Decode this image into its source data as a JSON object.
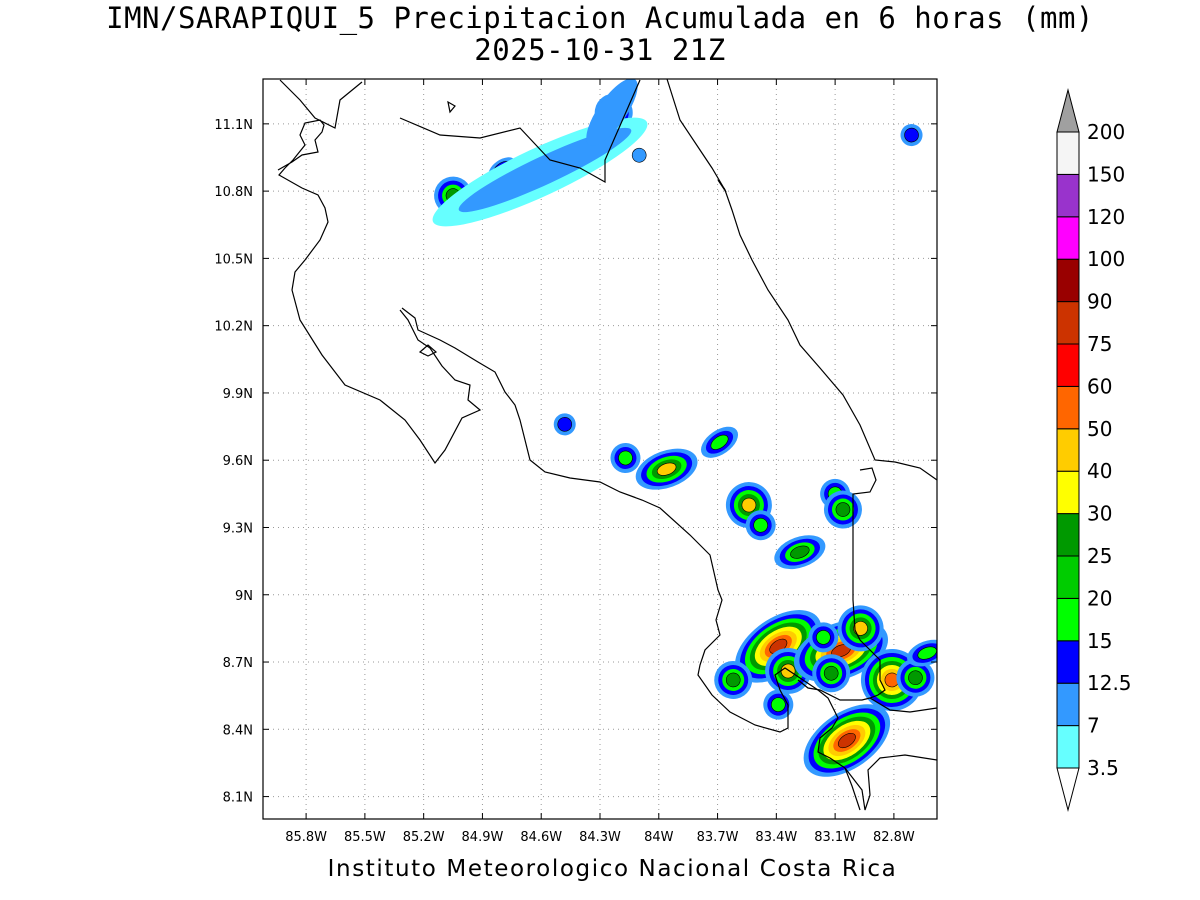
{
  "title_line1": "IMN/SARAPIQUI_5 Precipitacion Acumulada en 6 horas (mm)",
  "title_line2": "2025-10-31 21Z",
  "footer": "Instituto Meteorologico Nacional Costa Rica",
  "map": {
    "lon_range": [
      -86.02,
      -82.58
    ],
    "lat_range": [
      8.0,
      11.3
    ],
    "lon_ticks": [
      "85.8W",
      "85.5W",
      "85.2W",
      "84.9W",
      "84.6W",
      "84.3W",
      "84W",
      "83.7W",
      "83.4W",
      "83.1W",
      "82.8W"
    ],
    "lon_tick_values": [
      -85.8,
      -85.5,
      -85.2,
      -84.9,
      -84.6,
      -84.3,
      -84.0,
      -83.7,
      -83.4,
      -83.1,
      -82.8
    ],
    "lat_ticks": [
      "11.1N",
      "10.8N",
      "10.5N",
      "10.2N",
      "9.9N",
      "9.6N",
      "9.3N",
      "9N",
      "8.7N",
      "8.4N",
      "8.1N"
    ],
    "lat_tick_values": [
      11.1,
      10.8,
      10.5,
      10.2,
      9.9,
      9.6,
      9.3,
      9.0,
      8.7,
      8.4,
      8.1
    ],
    "grid": "dotted"
  },
  "colorbar": {
    "labels": [
      "3.5",
      "7",
      "12.5",
      "15",
      "20",
      "25",
      "30",
      "40",
      "50",
      "60",
      "75",
      "90",
      "100",
      "120",
      "150",
      "200"
    ],
    "colors": [
      "#66ffff",
      "#3399ff",
      "#0000ff",
      "#00ff00",
      "#00cc00",
      "#009900",
      "#ffff00",
      "#ffcc00",
      "#ff6600",
      "#ff0000",
      "#cc3300",
      "#990000",
      "#ff00ff",
      "#9933cc",
      "#f5f5f5"
    ],
    "under_color": "#ffffff",
    "over_color": "#a0a0a0"
  },
  "precip_cells": [
    {
      "lon": -84.55,
      "lat": 10.95,
      "levels": [
        1,
        2,
        3,
        5
      ]
    },
    {
      "lon": -84.23,
      "lat": 11.15,
      "levels": [
        1,
        2,
        3,
        5
      ]
    },
    {
      "lon": -85.05,
      "lat": 10.78,
      "levels": [
        1,
        2,
        3,
        5
      ]
    },
    {
      "lon": -84.8,
      "lat": 10.9,
      "levels": [
        1,
        2
      ]
    },
    {
      "lon": -84.1,
      "lat": 10.96,
      "levels": [
        1
      ]
    },
    {
      "lon": -82.71,
      "lat": 11.05,
      "levels": [
        1,
        2
      ]
    },
    {
      "lon": -83.96,
      "lat": 9.56,
      "levels": [
        1,
        2,
        3,
        5,
        7
      ]
    },
    {
      "lon": -84.48,
      "lat": 9.76,
      "levels": [
        1,
        2
      ]
    },
    {
      "lon": -84.17,
      "lat": 9.61,
      "levels": [
        1,
        2,
        3
      ]
    },
    {
      "lon": -83.69,
      "lat": 9.68,
      "levels": [
        1,
        2,
        3
      ]
    },
    {
      "lon": -83.54,
      "lat": 9.4,
      "levels": [
        1,
        2,
        3,
        5,
        7
      ]
    },
    {
      "lon": -83.48,
      "lat": 9.31,
      "levels": [
        1,
        2,
        3
      ]
    },
    {
      "lon": -83.28,
      "lat": 9.19,
      "levels": [
        1,
        2,
        3,
        5
      ]
    },
    {
      "lon": -83.1,
      "lat": 9.45,
      "levels": [
        1,
        2,
        3
      ]
    },
    {
      "lon": -83.06,
      "lat": 9.38,
      "levels": [
        1,
        2,
        3,
        5
      ]
    },
    {
      "lon": -83.39,
      "lat": 8.77,
      "levels": [
        1,
        2,
        3,
        5,
        6,
        7,
        8,
        10
      ]
    },
    {
      "lon": -83.34,
      "lat": 8.66,
      "levels": [
        1,
        2,
        3,
        5,
        7
      ]
    },
    {
      "lon": -83.62,
      "lat": 8.62,
      "levels": [
        1,
        2,
        3,
        5
      ]
    },
    {
      "lon": -83.07,
      "lat": 8.75,
      "levels": [
        1,
        2,
        3,
        5,
        6,
        7,
        8,
        10
      ]
    },
    {
      "lon": -82.97,
      "lat": 8.85,
      "levels": [
        1,
        2,
        3,
        5,
        7
      ]
    },
    {
      "lon": -83.12,
      "lat": 8.65,
      "levels": [
        1,
        2,
        3,
        5
      ]
    },
    {
      "lon": -83.04,
      "lat": 8.35,
      "levels": [
        1,
        2,
        3,
        5,
        6,
        7,
        8,
        10
      ]
    },
    {
      "lon": -82.81,
      "lat": 8.62,
      "levels": [
        1,
        2,
        3,
        5,
        6,
        7,
        8
      ]
    },
    {
      "lon": -82.69,
      "lat": 8.63,
      "levels": [
        1,
        2,
        3,
        5
      ]
    },
    {
      "lon": -82.63,
      "lat": 8.74,
      "levels": [
        1,
        2,
        3
      ]
    },
    {
      "lon": -83.39,
      "lat": 8.51,
      "levels": [
        1,
        2,
        3
      ]
    },
    {
      "lon": -83.16,
      "lat": 8.81,
      "levels": [
        1,
        2,
        3
      ]
    }
  ]
}
